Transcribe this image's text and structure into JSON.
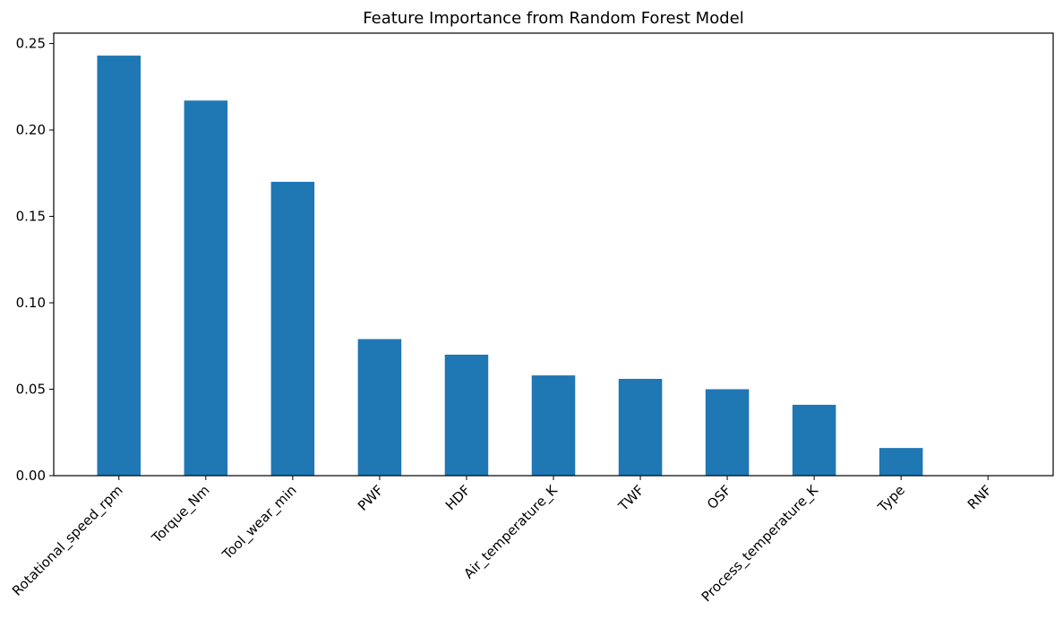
{
  "chart_data": {
    "type": "bar",
    "title": "Feature Importance from Random Forest Model",
    "xlabel": "",
    "ylabel": "",
    "categories": [
      "Rotational_speed_rpm",
      "Torque_Nm",
      "Tool_wear_min",
      "PWF",
      "HDF",
      "Air_temperature_K",
      "TWF",
      "OSF",
      "Process_temperature_K",
      "Type",
      "RNF"
    ],
    "values": [
      0.243,
      0.217,
      0.17,
      0.079,
      0.07,
      0.058,
      0.056,
      0.05,
      0.041,
      0.016,
      0.0
    ],
    "ylim": [
      0,
      0.256
    ],
    "yticks": [
      "0.00",
      "0.05",
      "0.10",
      "0.15",
      "0.20",
      "0.25"
    ],
    "grid": false,
    "legend": "none",
    "bar_color": "#1f77b4"
  }
}
